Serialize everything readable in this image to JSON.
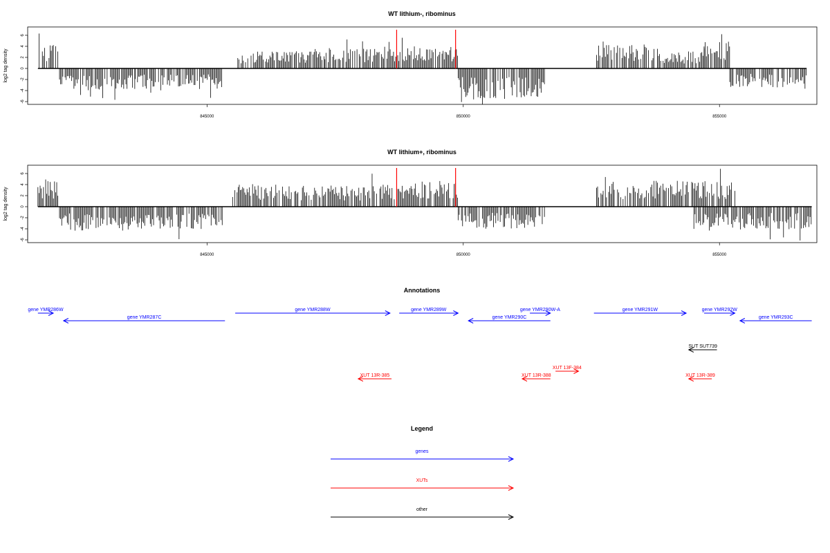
{
  "colors": {
    "gene": "#0000ff",
    "xut": "#ff0000",
    "other": "#000000",
    "marker": "#ff0000",
    "bars": "#000000"
  },
  "chart_data": [
    {
      "type": "bar",
      "title": "WT lithium-, ribominus",
      "ylabel": "log2 tag density",
      "xlim": [
        841500,
        856900
      ],
      "ylim": [
        -6.5,
        7.5
      ],
      "xticks": [
        845000,
        850000,
        855000
      ],
      "xtick_labels": [
        "845000",
        "850000",
        "855000"
      ],
      "yticks": [
        -6,
        -4,
        -2,
        0,
        2,
        4,
        6
      ],
      "ytick_labels": [
        "-6",
        "-4",
        "-2",
        "0",
        "2",
        "4",
        "6"
      ],
      "markers_x": [
        848700,
        849850
      ],
      "segments": [
        {
          "start": 841700,
          "end": 842100,
          "level": 3.5,
          "strand": "+"
        },
        {
          "start": 842100,
          "end": 843600,
          "level": -3.2,
          "strand": "-"
        },
        {
          "start": 843600,
          "end": 845300,
          "level": -3.0,
          "strand": "-"
        },
        {
          "start": 845600,
          "end": 847300,
          "level": 2.5,
          "strand": "+"
        },
        {
          "start": 847300,
          "end": 848700,
          "level": 3.2,
          "strand": "+"
        },
        {
          "start": 848700,
          "end": 849900,
          "level": 3.3,
          "strand": "+"
        },
        {
          "start": 849900,
          "end": 851600,
          "level": -4.5,
          "strand": "-"
        },
        {
          "start": 852600,
          "end": 853900,
          "level": 3.5,
          "strand": "+"
        },
        {
          "start": 853900,
          "end": 854700,
          "level": 2.5,
          "strand": "+"
        },
        {
          "start": 854700,
          "end": 855200,
          "level": 3.8,
          "strand": "+"
        },
        {
          "start": 855200,
          "end": 856700,
          "level": -2.8,
          "strand": "-"
        }
      ]
    },
    {
      "type": "bar",
      "title": "WT lithium+, ribominus",
      "ylabel": "log2 tag density",
      "xlim": [
        841500,
        856900
      ],
      "ylim": [
        -6.5,
        7.5
      ],
      "xticks": [
        845000,
        850000,
        855000
      ],
      "xtick_labels": [
        "845000",
        "850000",
        "855000"
      ],
      "yticks": [
        -6,
        -4,
        -2,
        0,
        2,
        4,
        6
      ],
      "ytick_labels": [
        "-6",
        "-4",
        "-2",
        "0",
        "2",
        "4",
        "6"
      ],
      "markers_x": [
        848700,
        849850
      ],
      "segments": [
        {
          "start": 841700,
          "end": 842100,
          "level": 4.0,
          "strand": "+"
        },
        {
          "start": 842100,
          "end": 845300,
          "level": -3.5,
          "strand": "-"
        },
        {
          "start": 845500,
          "end": 848700,
          "level": 3.2,
          "strand": "+"
        },
        {
          "start": 848700,
          "end": 849900,
          "level": 3.8,
          "strand": "+"
        },
        {
          "start": 849900,
          "end": 851600,
          "level": -3.2,
          "strand": "-"
        },
        {
          "start": 852600,
          "end": 855300,
          "level": 3.8,
          "strand": "+"
        },
        {
          "start": 854500,
          "end": 856800,
          "level": -3.3,
          "strand": "-"
        }
      ]
    }
  ],
  "annotations": {
    "title": "Annotations",
    "features": [
      {
        "label": "gene YMR286W",
        "type": "gene",
        "start": 841700,
        "end": 842000,
        "dir": "right",
        "row": 1
      },
      {
        "label": "gene YMR287C",
        "type": "gene",
        "start": 842200,
        "end": 845350,
        "dir": "left",
        "row": 2
      },
      {
        "label": "gene YMR288W",
        "type": "gene",
        "start": 845550,
        "end": 848570,
        "dir": "right",
        "row": 1
      },
      {
        "label": "gene YMR289W",
        "type": "gene",
        "start": 848750,
        "end": 849900,
        "dir": "right",
        "row": 1
      },
      {
        "label": "gene YMR290C",
        "type": "gene",
        "start": 850100,
        "end": 851700,
        "dir": "left",
        "row": 2
      },
      {
        "label": "gene YMR290W-A",
        "type": "gene",
        "start": 851300,
        "end": 851700,
        "dir": "right",
        "row": 1
      },
      {
        "label": "gene YMR291W",
        "type": "gene",
        "start": 852550,
        "end": 854350,
        "dir": "right",
        "row": 1
      },
      {
        "label": "gene YMR292W",
        "type": "gene",
        "start": 854700,
        "end": 855300,
        "dir": "right",
        "row": 1
      },
      {
        "label": "gene YMR293C",
        "type": "gene",
        "start": 855400,
        "end": 856800,
        "dir": "left",
        "row": 2
      },
      {
        "label": "SUT SUT739",
        "type": "other",
        "start": 854400,
        "end": 854950,
        "dir": "left",
        "row": 3
      },
      {
        "label": "XUT 13F-384",
        "type": "xut",
        "start": 851800,
        "end": 852250,
        "dir": "right",
        "row": 4
      },
      {
        "label": "XUT 13R-385",
        "type": "xut",
        "start": 847950,
        "end": 848600,
        "dir": "left",
        "row": 5
      },
      {
        "label": "XUT 13R-388",
        "type": "xut",
        "start": 851150,
        "end": 851700,
        "dir": "left",
        "row": 5
      },
      {
        "label": "XUT 13R-389",
        "type": "xut",
        "start": 854400,
        "end": 854850,
        "dir": "left",
        "row": 5
      }
    ]
  },
  "legend": {
    "title": "Legend",
    "items": [
      {
        "label": "genes",
        "type": "gene"
      },
      {
        "label": "XUTs",
        "type": "xut"
      },
      {
        "label": "other",
        "type": "other"
      }
    ]
  }
}
